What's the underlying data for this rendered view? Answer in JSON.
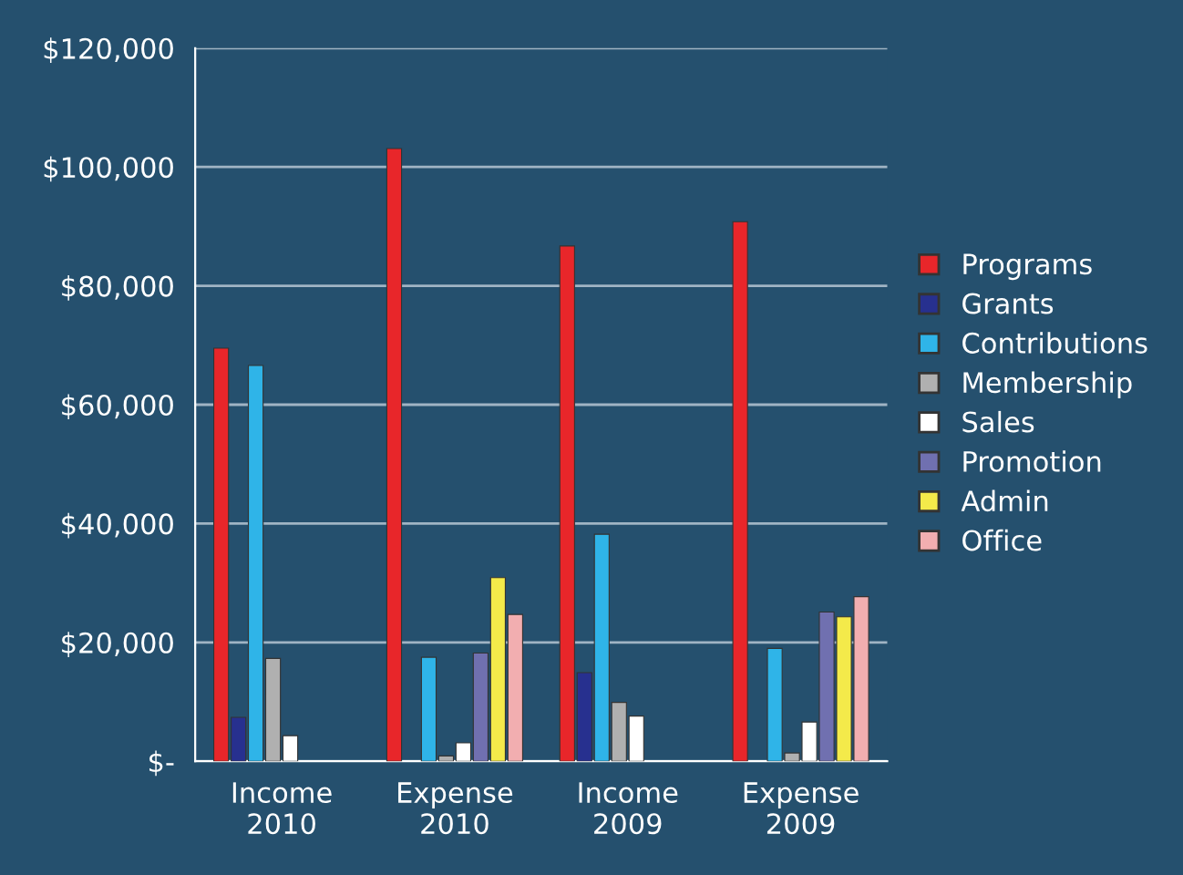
{
  "chart_data": {
    "type": "bar",
    "categories": [
      "Income\n2010",
      "Expense\n2010",
      "Income\n2009",
      "Expense\n2009"
    ],
    "series": [
      {
        "name": "Programs",
        "color": "#e8262a",
        "values": [
          69500,
          103100,
          86700,
          90800
        ]
      },
      {
        "name": "Grants",
        "color": "#27308f",
        "values": [
          7400,
          null,
          14900,
          null
        ]
      },
      {
        "name": "Contributions",
        "color": "#2fb4e8",
        "values": [
          66600,
          17500,
          38200,
          19000
        ]
      },
      {
        "name": "Membership",
        "color": "#b0b0b0",
        "values": [
          17300,
          900,
          9900,
          1400
        ]
      },
      {
        "name": "Sales",
        "color": "#ffffff",
        "values": [
          4300,
          3100,
          7600,
          6600
        ]
      },
      {
        "name": "Promotion",
        "color": "#7070b0",
        "values": [
          null,
          18200,
          null,
          25100
        ]
      },
      {
        "name": "Admin",
        "color": "#f4ea4a",
        "values": [
          null,
          30900,
          null,
          24300
        ]
      },
      {
        "name": "Office",
        "color": "#f2aeb0",
        "values": [
          null,
          24700,
          null,
          27700
        ]
      }
    ],
    "ylim": [
      0,
      120000
    ],
    "yticks": [
      {
        "value": 0,
        "label": "$-"
      },
      {
        "value": 20000,
        "label": "$20,000"
      },
      {
        "value": 40000,
        "label": "$40,000"
      },
      {
        "value": 60000,
        "label": "$60,000"
      },
      {
        "value": 80000,
        "label": "$80,000"
      },
      {
        "value": 100000,
        "label": "$100,000"
      },
      {
        "value": 120000,
        "label": "$120,000"
      }
    ],
    "grid": "y",
    "legend": "right"
  }
}
